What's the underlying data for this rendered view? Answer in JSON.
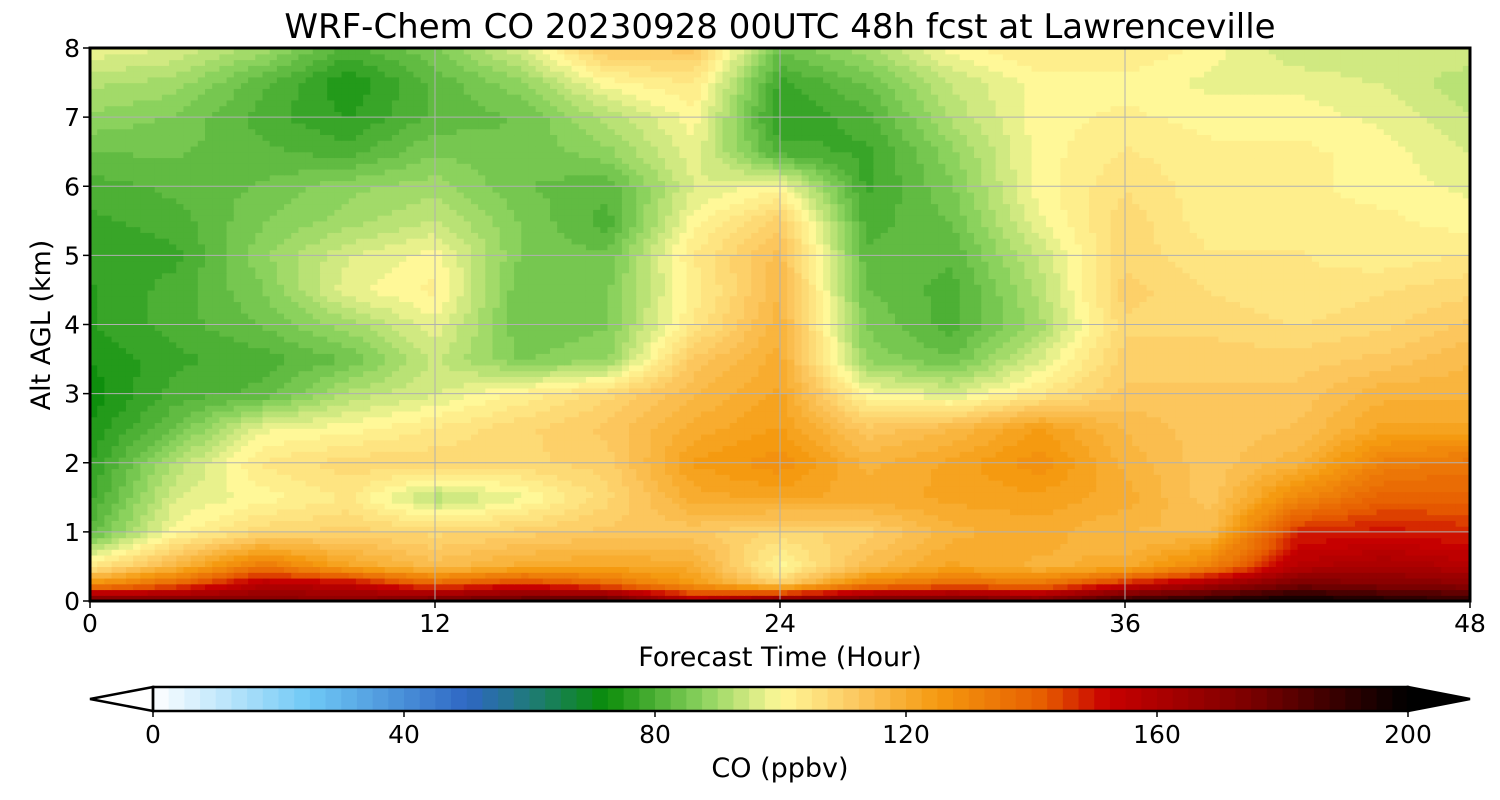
{
  "chart_data": {
    "type": "heatmap",
    "title": "WRF-Chem CO  20230928 00UTC 48h fcst at Lawrenceville",
    "xlabel": "Forecast Time (Hour)",
    "ylabel": "Alt AGL (km)",
    "xlim": [
      0,
      48
    ],
    "ylim": [
      0,
      8
    ],
    "x_ticks": [
      0,
      12,
      24,
      36,
      48
    ],
    "y_ticks": [
      0,
      1,
      2,
      3,
      4,
      5,
      6,
      7,
      8
    ],
    "grid": true,
    "colorbar": {
      "label": "CO  (ppbv)",
      "range": [
        0,
        200
      ],
      "ticks": [
        0,
        40,
        80,
        120,
        160,
        200
      ],
      "extend": "both",
      "colors": [
        {
          "value": 0,
          "color": "#ffffff"
        },
        {
          "value": 25,
          "color": "#6ec8f5"
        },
        {
          "value": 50,
          "color": "#2f67c4"
        },
        {
          "value": 60,
          "color": "#1f7a7a"
        },
        {
          "value": 72,
          "color": "#0a8c0a"
        },
        {
          "value": 88,
          "color": "#8fd460"
        },
        {
          "value": 100,
          "color": "#fff898"
        },
        {
          "value": 112,
          "color": "#fcc860"
        },
        {
          "value": 125,
          "color": "#f59a10"
        },
        {
          "value": 142,
          "color": "#e65c00"
        },
        {
          "value": 152,
          "color": "#c80000"
        },
        {
          "value": 175,
          "color": "#7a0000"
        },
        {
          "value": 200,
          "color": "#000000"
        }
      ]
    },
    "time_hours": [
      0,
      3,
      6,
      9,
      12,
      15,
      18,
      21,
      24,
      27,
      30,
      33,
      36,
      39,
      42,
      45,
      48
    ],
    "altitude_km": [
      0,
      0.25,
      0.5,
      1,
      1.5,
      2,
      2.5,
      3,
      3.5,
      4,
      4.5,
      5,
      5.5,
      6,
      6.5,
      7,
      7.5,
      8
    ],
    "values_ppbv": [
      [
        180,
        175,
        172,
        170,
        178,
        182,
        185,
        160,
        175,
        180,
        180,
        175,
        190,
        195,
        200,
        195,
        190
      ],
      [
        128,
        140,
        158,
        155,
        140,
        148,
        138,
        125,
        110,
        132,
        138,
        135,
        150,
        162,
        175,
        172,
        170
      ],
      [
        104,
        118,
        135,
        122,
        115,
        120,
        122,
        120,
        100,
        115,
        122,
        118,
        120,
        132,
        158,
        162,
        158
      ],
      [
        82,
        100,
        108,
        110,
        108,
        110,
        112,
        112,
        108,
        110,
        118,
        120,
        116,
        116,
        148,
        150,
        148
      ],
      [
        78,
        96,
        100,
        104,
        92,
        98,
        108,
        120,
        122,
        120,
        122,
        123,
        120,
        112,
        130,
        140,
        140
      ],
      [
        76,
        92,
        104,
        108,
        108,
        108,
        110,
        124,
        128,
        118,
        122,
        128,
        118,
        112,
        118,
        132,
        135
      ],
      [
        74,
        84,
        98,
        100,
        104,
        108,
        112,
        120,
        124,
        112,
        116,
        124,
        116,
        112,
        114,
        122,
        122
      ],
      [
        72,
        80,
        82,
        92,
        96,
        102,
        108,
        116,
        122,
        100,
        96,
        104,
        112,
        112,
        112,
        118,
        118
      ],
      [
        74,
        78,
        80,
        84,
        94,
        86,
        88,
        112,
        120,
        88,
        84,
        96,
        110,
        110,
        110,
        112,
        116
      ],
      [
        76,
        80,
        84,
        90,
        98,
        84,
        86,
        104,
        118,
        86,
        80,
        90,
        108,
        108,
        106,
        108,
        112
      ],
      [
        76,
        80,
        86,
        98,
        102,
        84,
        86,
        102,
        116,
        84,
        80,
        92,
        110,
        106,
        104,
        106,
        108
      ],
      [
        77,
        78,
        88,
        96,
        100,
        86,
        84,
        104,
        115,
        82,
        82,
        94,
        108,
        104,
        104,
        102,
        104
      ],
      [
        78,
        80,
        86,
        90,
        94,
        86,
        80,
        100,
        110,
        80,
        84,
        98,
        108,
        102,
        102,
        102,
        100
      ],
      [
        80,
        82,
        84,
        88,
        90,
        84,
        82,
        96,
        100,
        78,
        86,
        100,
        106,
        102,
        102,
        100,
        98
      ],
      [
        84,
        84,
        82,
        80,
        86,
        84,
        88,
        98,
        80,
        78,
        88,
        100,
        104,
        102,
        102,
        100,
        96
      ],
      [
        88,
        86,
        80,
        76,
        82,
        84,
        92,
        100,
        76,
        80,
        92,
        100,
        102,
        100,
        100,
        98,
        94
      ],
      [
        92,
        90,
        82,
        74,
        82,
        88,
        100,
        104,
        78,
        84,
        94,
        100,
        100,
        98,
        98,
        96,
        92
      ],
      [
        98,
        96,
        90,
        80,
        86,
        96,
        112,
        112,
        84,
        90,
        100,
        104,
        104,
        100,
        94,
        94,
        96
      ]
    ]
  }
}
